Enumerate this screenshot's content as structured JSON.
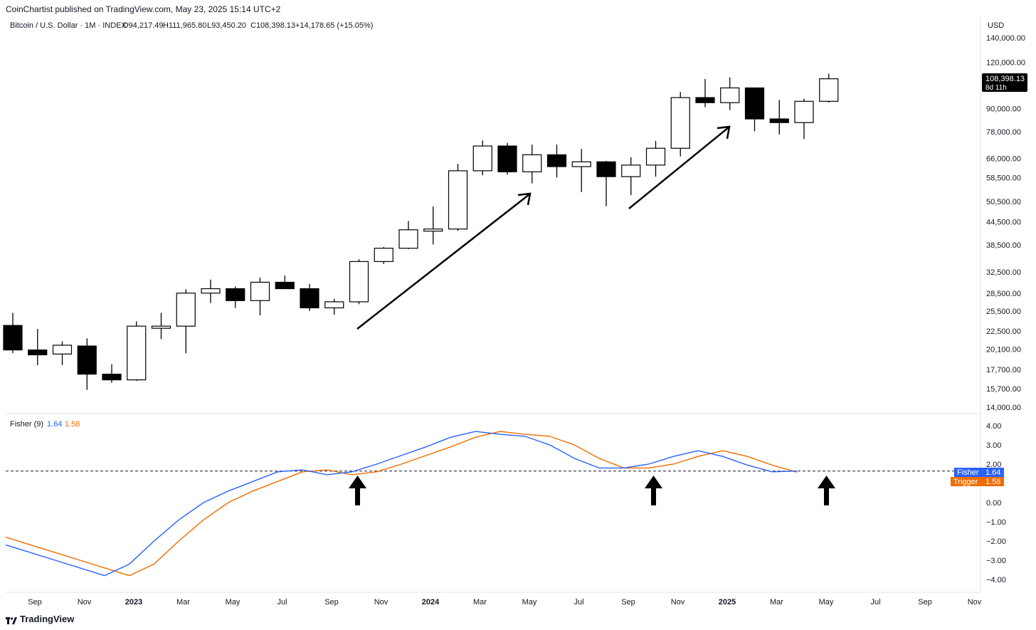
{
  "header": {
    "published": "CoinChartist published on TradingView.com, May 23, 2025 15:14 UTC+2"
  },
  "legend": {
    "symbol": "Bitcoin / U.S. Dollar · 1M · INDEX",
    "open": "O94,217.49",
    "high": "H111,965.80",
    "low": "L93,450.20",
    "close": "C108,398.13",
    "change": "+14,178.65 (+15.05%)"
  },
  "price_axis": {
    "currency": "USD",
    "ticks": [
      "140,000.00",
      "120,000.00",
      "90,000.00",
      "78,000.00",
      "66,000.00",
      "58,500.00",
      "50,500.00",
      "44,500.00",
      "38,500.00",
      "32,500.00",
      "28,500.00",
      "25,500.00",
      "22,500.00",
      "20,100.00",
      "17,700.00",
      "15,700.00",
      "14,000.00"
    ],
    "last_price_label": "108,398.13",
    "countdown_label": "8d 11h"
  },
  "indicator": {
    "name": "Fisher (9)",
    "fisher_value": "1.64",
    "trigger_value": "1.58",
    "fisher_label": "Fisher",
    "trigger_label": "Trigger",
    "fisher_color": "#2962ff",
    "trigger_color": "#ef6c00",
    "ticks": [
      "4.00",
      "3.00",
      "2.00",
      "0.00",
      "−1.00",
      "−2.00",
      "−3.00",
      "−4.00"
    ]
  },
  "time_axis": {
    "labels": [
      {
        "text": "Sep",
        "bold": false
      },
      {
        "text": "Nov",
        "bold": false
      },
      {
        "text": "2023",
        "bold": true
      },
      {
        "text": "Mar",
        "bold": false
      },
      {
        "text": "May",
        "bold": false
      },
      {
        "text": "Jul",
        "bold": false
      },
      {
        "text": "Sep",
        "bold": false
      },
      {
        "text": "Nov",
        "bold": false
      },
      {
        "text": "2024",
        "bold": true
      },
      {
        "text": "Mar",
        "bold": false
      },
      {
        "text": "May",
        "bold": false
      },
      {
        "text": "Jul",
        "bold": false
      },
      {
        "text": "Sep",
        "bold": false
      },
      {
        "text": "Nov",
        "bold": false
      },
      {
        "text": "2025",
        "bold": true
      },
      {
        "text": "Mar",
        "bold": false
      },
      {
        "text": "May",
        "bold": false
      },
      {
        "text": "Jul",
        "bold": false
      },
      {
        "text": "Sep",
        "bold": false
      },
      {
        "text": "Nov",
        "bold": false
      }
    ]
  },
  "footer": {
    "brand": "TradingView"
  },
  "chart_data": [
    {
      "type": "candlestick",
      "title": "Bitcoin / U.S. Dollar · 1M · INDEX",
      "scale": "log",
      "ylim": [
        13500,
        150000
      ],
      "candles": [
        {
          "o": 23300,
          "h": 25200,
          "l": 19600,
          "c": 20000
        },
        {
          "o": 20000,
          "h": 22800,
          "l": 18200,
          "c": 19400
        },
        {
          "o": 19500,
          "h": 21100,
          "l": 18200,
          "c": 20600
        },
        {
          "o": 20500,
          "h": 21500,
          "l": 15600,
          "c": 17200
        },
        {
          "o": 17200,
          "h": 18300,
          "l": 16300,
          "c": 16600
        },
        {
          "o": 16600,
          "h": 23900,
          "l": 16500,
          "c": 23200
        },
        {
          "o": 23100,
          "h": 25200,
          "l": 21400,
          "c": 23200
        },
        {
          "o": 23200,
          "h": 29200,
          "l": 19600,
          "c": 28500
        },
        {
          "o": 28500,
          "h": 31000,
          "l": 26800,
          "c": 29300
        },
        {
          "o": 29300,
          "h": 29700,
          "l": 26000,
          "c": 27200
        },
        {
          "o": 27200,
          "h": 31400,
          "l": 24800,
          "c": 30500
        },
        {
          "o": 30500,
          "h": 31800,
          "l": 29500,
          "c": 29300
        },
        {
          "o": 29300,
          "h": 30200,
          "l": 25500,
          "c": 26000
        },
        {
          "o": 26000,
          "h": 27500,
          "l": 24900,
          "c": 27000
        },
        {
          "o": 27000,
          "h": 35200,
          "l": 26600,
          "c": 34700
        },
        {
          "o": 34700,
          "h": 38000,
          "l": 34200,
          "c": 37700
        },
        {
          "o": 37700,
          "h": 44700,
          "l": 37500,
          "c": 42300
        },
        {
          "o": 42300,
          "h": 48900,
          "l": 38600,
          "c": 42500
        },
        {
          "o": 42500,
          "h": 63800,
          "l": 42000,
          "c": 61100
        },
        {
          "o": 61100,
          "h": 73800,
          "l": 59400,
          "c": 71300
        },
        {
          "o": 71300,
          "h": 72700,
          "l": 59600,
          "c": 60700
        },
        {
          "o": 60700,
          "h": 71900,
          "l": 56500,
          "c": 67500
        },
        {
          "o": 67500,
          "h": 71900,
          "l": 58600,
          "c": 62700
        },
        {
          "o": 62700,
          "h": 70000,
          "l": 53500,
          "c": 64600
        },
        {
          "o": 64600,
          "h": 65000,
          "l": 49000,
          "c": 58900
        },
        {
          "o": 58900,
          "h": 66500,
          "l": 52500,
          "c": 63300
        },
        {
          "o": 63300,
          "h": 73600,
          "l": 58900,
          "c": 70300
        },
        {
          "o": 70300,
          "h": 99800,
          "l": 66800,
          "c": 96400
        },
        {
          "o": 96400,
          "h": 108300,
          "l": 90800,
          "c": 93400
        },
        {
          "o": 93400,
          "h": 109300,
          "l": 89200,
          "c": 102400
        },
        {
          "o": 102400,
          "h": 102500,
          "l": 78200,
          "c": 84400
        },
        {
          "o": 84400,
          "h": 95000,
          "l": 76600,
          "c": 82500
        },
        {
          "o": 82500,
          "h": 95800,
          "l": 74500,
          "c": 94200
        },
        {
          "o": 94200,
          "h": 111965,
          "l": 93450,
          "c": 108398
        }
      ]
    },
    {
      "type": "line",
      "title": "Fisher (9)",
      "ylim": [
        -4.5,
        4.5
      ],
      "series": [
        {
          "name": "Fisher",
          "values": [
            -2.2,
            -2.6,
            -3.0,
            -3.4,
            -3.8,
            -3.2,
            -2.0,
            -0.9,
            0.0,
            0.6,
            1.1,
            1.6,
            1.7,
            1.45,
            1.6,
            2.0,
            2.45,
            2.9,
            3.4,
            3.7,
            3.55,
            3.45,
            3.0,
            2.3,
            1.8,
            1.8,
            2.0,
            2.4,
            2.7,
            2.4,
            1.95,
            1.6,
            1.64
          ]
        },
        {
          "name": "Trigger",
          "values": [
            -1.8,
            -2.2,
            -2.6,
            -3.0,
            -3.4,
            -3.8,
            -3.2,
            -2.0,
            -0.9,
            0.0,
            0.6,
            1.1,
            1.6,
            1.7,
            1.45,
            1.6,
            2.0,
            2.45,
            2.9,
            3.4,
            3.7,
            3.55,
            3.45,
            3.0,
            2.3,
            1.8,
            1.8,
            2.0,
            2.4,
            2.7,
            2.4,
            1.95,
            1.58
          ]
        }
      ],
      "reference_line": 1.64
    }
  ]
}
